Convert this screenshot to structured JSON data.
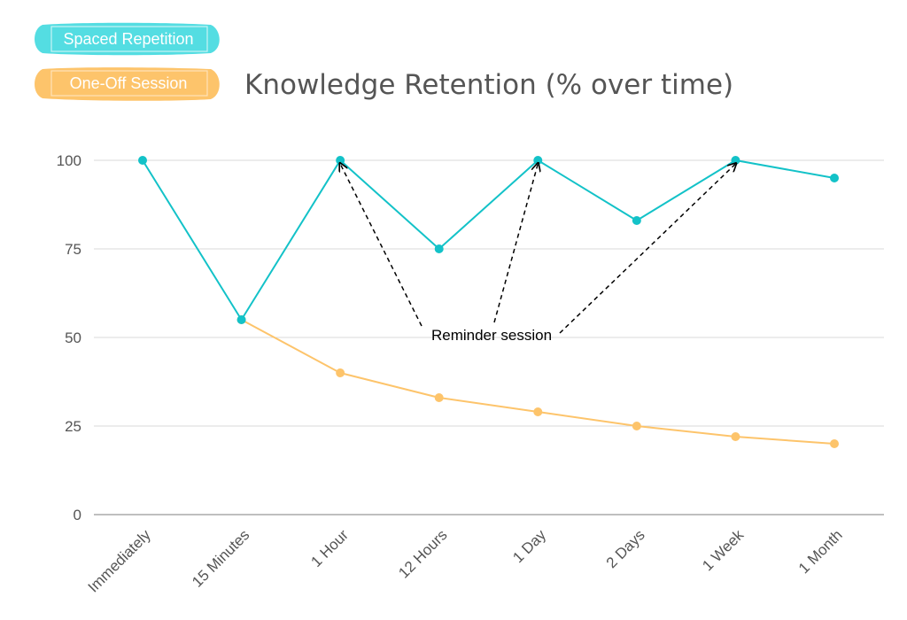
{
  "chart_data": {
    "type": "line",
    "title": "Knowledge Retention (% over time)",
    "xlabel": "",
    "ylabel": "",
    "categories": [
      "Immediately",
      "15 Minutes",
      "1 Hour",
      "12 Hours",
      "1 Day",
      "2 Days",
      "1 Week",
      "1 Month"
    ],
    "ylim": [
      0,
      100
    ],
    "yticks": [
      0,
      25,
      50,
      75,
      100
    ],
    "grid": true,
    "legend_position": "top-left",
    "series": [
      {
        "name": "Spaced Repetition",
        "color": "#13c2c8",
        "values": [
          100,
          55,
          100,
          75,
          100,
          83,
          100,
          95
        ]
      },
      {
        "name": "One-Off Session",
        "color": "#fdc46b",
        "values": [
          null,
          55,
          40,
          33,
          29,
          25,
          22,
          20
        ]
      }
    ],
    "annotations": [
      {
        "text": "Reminder session",
        "targets": [
          "1 Hour",
          "1 Day",
          "1 Week"
        ],
        "target_series": "Spaced Repetition"
      }
    ]
  }
}
